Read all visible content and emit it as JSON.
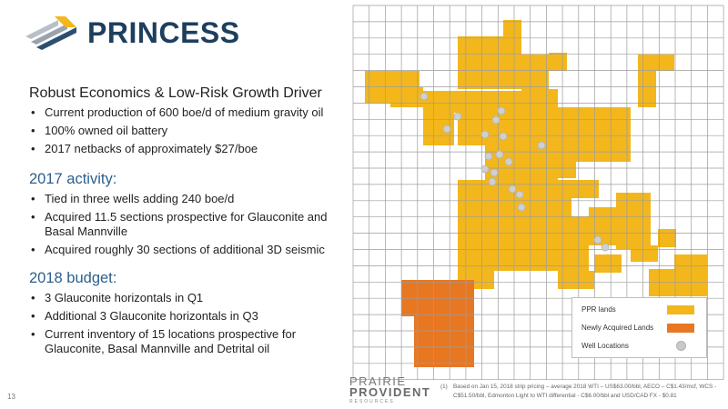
{
  "header": {
    "title": "PRINCESS",
    "logo_icon": "chevron-stack-logo-icon"
  },
  "colors": {
    "title": "#1d3f5e",
    "ppr_lands": "#f3b71c",
    "new_lands": "#e87722",
    "well": "#c9c9c9"
  },
  "sections": [
    {
      "heading": "Robust Economics & Low-Risk Growth Driver",
      "items": [
        "Current production of 600 boe/d of medium gravity oil",
        "100% owned oil battery",
        "2017 netbacks of approximately $27/boe"
      ]
    },
    {
      "heading": "2017 activity:",
      "items": [
        "Tied in three wells adding 240 boe/d",
        "Acquired 11.5 sections prospective for Glauconite and Basal Mannville",
        "Acquired roughly 30 sections of additional 3D seismic"
      ]
    },
    {
      "heading": "2018 budget:",
      "items": [
        "3 Glauconite horizontals in Q1",
        "Additional 3 Glauconite horizontals in Q3",
        "Current inventory of 15 locations prospective for Glauconite, Basal Mannville and Detrital oil"
      ]
    }
  ],
  "legend": {
    "ppr_lands": "PPR lands",
    "newly_acquired": "Newly Acquired Lands",
    "well_locations": "Well Locations"
  },
  "footer": {
    "page_number": "13",
    "logo_line1": "PRAIRIE",
    "logo_line2": "PROVIDENT",
    "logo_line3": "RESOURCES",
    "footnote_number": "(1)",
    "footnote_text": "Based on Jan 15, 2018 strip pricing – average 2018 WTI – US$63.00/bbl, AECO – C$1.43/mcf, WCS - C$51.50/bbl, Edmonton Light to WTI differential - C$6.00/bbl and USD/CAD FX - $0.81"
  }
}
